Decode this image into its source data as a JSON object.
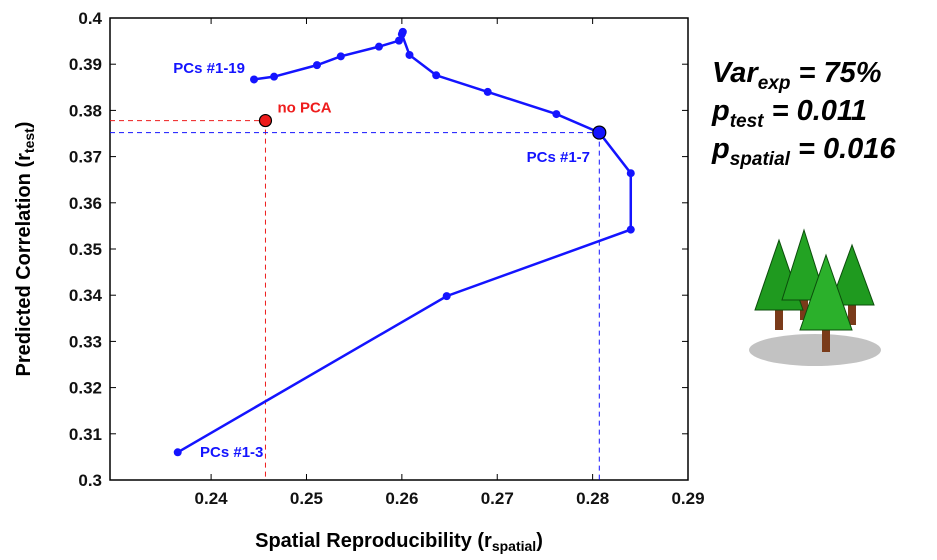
{
  "chart_data": {
    "type": "line",
    "xlabel": {
      "text": "Spatial Reproducibility (r",
      "sub": "spatial",
      "end": ")"
    },
    "ylabel": {
      "text": "Predicted Correlation (r",
      "sub": "test",
      "end": ")"
    },
    "x": [
      0.2365,
      0.2647,
      0.284,
      0.284,
      0.2807,
      0.2762,
      0.269,
      0.2636,
      0.2608,
      0.26,
      0.2601,
      0.2597,
      0.2576,
      0.2536,
      0.2511,
      0.2466,
      0.2445
    ],
    "values": [
      0.306,
      0.3398,
      0.3542,
      0.3664,
      0.3752,
      0.3792,
      0.384,
      0.3876,
      0.392,
      0.3965,
      0.397,
      0.3951,
      0.3938,
      0.3917,
      0.3898,
      0.3873,
      0.3867
    ],
    "color": "#1414ff",
    "annotations": [
      "PCs #1-3",
      "PCs #1-7",
      "PCs #1-19"
    ],
    "reference": {
      "label": "no PCA",
      "x": 0.2457,
      "y": 0.3778,
      "color": "#ee1c1c"
    },
    "xlim": [
      0.2294,
      0.29
    ],
    "xticks": [
      0.24,
      0.25,
      0.26,
      0.27,
      0.28,
      0.29
    ],
    "ylim": [
      0.3,
      0.4
    ],
    "yticks": [
      0.3,
      0.31,
      0.32,
      0.33,
      0.34,
      0.35,
      0.36,
      0.37,
      0.38,
      0.39,
      0.4
    ],
    "stats": [
      {
        "symbol": "Var",
        "sub": "exp",
        "text": " = 75%"
      },
      {
        "symbol": "p",
        "sub": "test",
        "text": " = 0.011"
      },
      {
        "symbol": "p",
        "sub": "spatial",
        "text": " = 0.016"
      }
    ]
  }
}
